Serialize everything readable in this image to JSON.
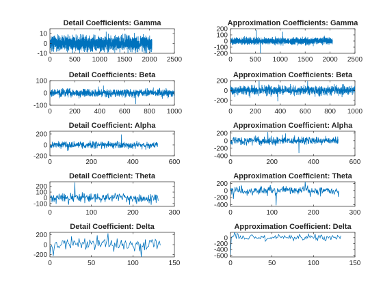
{
  "figure": {
    "background": "#ffffff",
    "line_color": "#0072bd",
    "axis_color": "#262626"
  },
  "chart_data": [
    {
      "id": "d-gamma",
      "type": "line",
      "title": "Detail Coefficients: Gamma",
      "n": 2050,
      "amplitude": 6,
      "spikes": [
        [
          1130,
          12
        ],
        [
          1650,
          -9
        ]
      ],
      "seed": 11,
      "xlim": [
        0,
        2500
      ],
      "ylim": [
        -10,
        15
      ],
      "xticks": [
        0,
        500,
        1000,
        1500,
        2000,
        2500
      ],
      "yticks": [
        -10,
        0,
        10
      ]
    },
    {
      "id": "a-gamma",
      "type": "line",
      "title": "Approximation Coefficients: Gamma",
      "n": 2050,
      "amplitude": 45,
      "spikes": [
        [
          520,
          180
        ],
        [
          600,
          -200
        ],
        [
          1050,
          150
        ]
      ],
      "seed": 23,
      "xlim": [
        0,
        2500
      ],
      "ylim": [
        -200,
        200
      ],
      "xticks": [
        0,
        500,
        1000,
        1500,
        2000,
        2500
      ],
      "yticks": [
        -200,
        -100,
        0,
        100,
        200
      ]
    },
    {
      "id": "d-beta",
      "type": "line",
      "title": "Detail Coefficients: Beta",
      "n": 1030,
      "amplitude": 28,
      "spikes": [
        [
          690,
          -90
        ],
        [
          430,
          60
        ]
      ],
      "seed": 37,
      "xlim": [
        0,
        1000
      ],
      "ylim": [
        -100,
        100
      ],
      "xticks": [
        0,
        200,
        400,
        600,
        800,
        1000
      ],
      "yticks": [
        -100,
        0,
        100
      ]
    },
    {
      "id": "a-beta",
      "type": "line",
      "title": "Approximation Coefficients: Beta",
      "n": 1030,
      "amplitude": 80,
      "spikes": [
        [
          230,
          200
        ],
        [
          380,
          -220
        ],
        [
          620,
          190
        ]
      ],
      "seed": 41,
      "xlim": [
        0,
        1000
      ],
      "ylim": [
        -300,
        200
      ],
      "xticks": [
        0,
        200,
        400,
        600,
        800,
        1000
      ],
      "yticks": [
        -200,
        0,
        200
      ]
    },
    {
      "id": "d-alpha",
      "type": "line",
      "title": "Detail Coefficient: Alpha",
      "n": 520,
      "amplitude": 55,
      "spikes": [
        [
          345,
          190
        ],
        [
          85,
          -110
        ]
      ],
      "seed": 53,
      "xlim": [
        0,
        600
      ],
      "ylim": [
        -200,
        250
      ],
      "xticks": [
        0,
        200,
        400,
        600
      ],
      "yticks": [
        -200,
        0,
        200
      ]
    },
    {
      "id": "a-alpha",
      "type": "line",
      "title": "Approximation Coefficient: Alpha",
      "n": 520,
      "amplitude": 90,
      "spikes": [
        [
          180,
          230
        ],
        [
          330,
          -330
        ],
        [
          265,
          190
        ]
      ],
      "seed": 67,
      "xlim": [
        0,
        600
      ],
      "ylim": [
        -400,
        250
      ],
      "xticks": [
        0,
        200,
        400,
        600
      ],
      "yticks": [
        -400,
        -200,
        0,
        200
      ]
    },
    {
      "id": "d-theta",
      "type": "line",
      "title": "Detail Coefficient: Theta",
      "n": 262,
      "amplitude": 70,
      "spikes": [
        [
          60,
          270
        ],
        [
          45,
          -120
        ]
      ],
      "seed": 71,
      "xlim": [
        0,
        300
      ],
      "ylim": [
        -150,
        280
      ],
      "xticks": [
        0,
        100,
        200,
        300
      ],
      "yticks": [
        -100,
        0,
        100,
        200
      ]
    },
    {
      "id": "a-theta",
      "type": "line",
      "title": "Approximation Coefficient: Theta",
      "n": 262,
      "amplitude": 110,
      "spikes": [
        [
          180,
          250
        ],
        [
          110,
          -420
        ]
      ],
      "seed": 83,
      "xlim": [
        0,
        300
      ],
      "ylim": [
        -450,
        250
      ],
      "xticks": [
        0,
        100,
        200,
        300
      ],
      "yticks": [
        -400,
        -200,
        0,
        200
      ]
    },
    {
      "id": "d-delta",
      "type": "line",
      "title": "Detail Coefficient: Delta",
      "n": 134,
      "amplitude": 120,
      "spikes": [
        [
          70,
          230
        ],
        [
          110,
          -250
        ]
      ],
      "seed": 97,
      "xlim": [
        0,
        150
      ],
      "ylim": [
        -250,
        250
      ],
      "xticks": [
        0,
        50,
        100,
        150
      ],
      "yticks": [
        -200,
        0,
        200
      ]
    },
    {
      "id": "a-delta",
      "type": "line",
      "title": "Approximation Coefficient: Delta",
      "n": 134,
      "amplitude": 100,
      "start": -580,
      "spikes": [
        [
          5,
          180
        ]
      ],
      "seed": 103,
      "xlim": [
        0,
        150
      ],
      "ylim": [
        -650,
        180
      ],
      "xticks": [
        0,
        50,
        100,
        150
      ],
      "yticks": [
        -600,
        -400,
        -200,
        0
      ]
    }
  ]
}
